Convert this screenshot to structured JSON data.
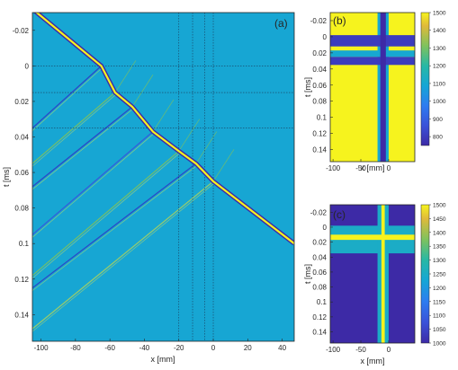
{
  "figure": {
    "panels": [
      {
        "id": "a",
        "label": "(a)",
        "xlabel": "x [mm]",
        "ylabel": "t [ms]",
        "xticks": [
          "-100",
          "-80",
          "-60",
          "-40",
          "-20",
          "0",
          "20",
          "40"
        ],
        "yticks": [
          "-0.02",
          "0",
          "0.02",
          "0.04",
          "0.06",
          "0.08",
          "0.1",
          "0.12",
          "0.14"
        ]
      },
      {
        "id": "b",
        "label": "(b)",
        "xlabel": "x [mm]",
        "ylabel": "t [ms]",
        "xticks": [
          "-100",
          "-50",
          "0"
        ],
        "yticks": [
          "-0.02",
          "0",
          "0.02",
          "0.04",
          "0.06",
          "0.08",
          "0.1",
          "0.12",
          "0.14"
        ],
        "colorbar_ticks": [
          "1500",
          "1400",
          "1300",
          "1200",
          "1100",
          "1000",
          "900",
          "800"
        ]
      },
      {
        "id": "c",
        "label": "(c)",
        "xlabel": "x [mm]",
        "ylabel": "t [ms]",
        "xticks": [
          "-100",
          "-50",
          "0"
        ],
        "yticks": [
          "-0.02",
          "0",
          "0.02",
          "0.04",
          "0.06",
          "0.08",
          "0.1",
          "0.12",
          "0.14"
        ],
        "colorbar_ticks": [
          "1500",
          "1450",
          "1400",
          "1350",
          "1300",
          "1250",
          "1200",
          "1150",
          "1100",
          "1050",
          "1000"
        ]
      }
    ]
  },
  "chart_data": [
    {
      "type": "heatmap",
      "panel": "(a)",
      "xlabel": "x [mm]",
      "ylabel": "t [ms]",
      "xlim": [
        -105,
        47
      ],
      "ylim": [
        -0.03,
        0.155
      ],
      "y_reversed": true,
      "background_color": "#17a6d3",
      "main_front_points": [
        [
          -105,
          -0.032
        ],
        [
          -65,
          0.0
        ],
        [
          -57,
          0.015
        ],
        [
          -47,
          0.023
        ],
        [
          -35,
          0.037
        ],
        [
          -20,
          0.048
        ],
        [
          -10,
          0.055
        ],
        [
          0,
          0.065
        ],
        [
          47,
          0.1
        ]
      ],
      "reflections": [
        {
          "from": [
            -65,
            0.0
          ],
          "to": [
            -105,
            0.035
          ]
        },
        {
          "from": [
            -57,
            0.015
          ],
          "to": [
            -105,
            0.055
          ]
        },
        {
          "from": [
            -47,
            0.023
          ],
          "to": [
            -105,
            0.068
          ]
        },
        {
          "from": [
            -35,
            0.037
          ],
          "to": [
            -105,
            0.095
          ]
        },
        {
          "from": [
            -20,
            0.048
          ],
          "to": [
            -105,
            0.118
          ]
        },
        {
          "from": [
            -10,
            0.055
          ],
          "to": [
            -105,
            0.125
          ]
        },
        {
          "from": [
            0,
            0.065
          ],
          "to": [
            -105,
            0.148
          ]
        }
      ],
      "guide_lines_x": [
        -20,
        -12,
        -5,
        0
      ],
      "guide_lines_y": [
        0.0,
        0.015,
        0.035
      ]
    },
    {
      "type": "heatmap",
      "panel": "(b)",
      "xlabel": "x [mm]",
      "ylabel": "t [ms]",
      "xlim": [
        -105,
        47
      ],
      "ylim": [
        -0.03,
        0.155
      ],
      "y_reversed": true,
      "colorbar": {
        "min": 750,
        "max": 1500,
        "ticks": [
          800,
          900,
          1000,
          1100,
          1200,
          1300,
          1400,
          1500
        ]
      },
      "background_value": 1500,
      "regions": [
        {
          "x": [
            -20,
            0
          ],
          "t": [
            -0.03,
            0.155
          ],
          "value": 1100
        },
        {
          "x": [
            -105,
            47
          ],
          "t": [
            -0.002,
            0.012
          ],
          "value": 800
        },
        {
          "x": [
            -105,
            47
          ],
          "t": [
            0.017,
            0.025
          ],
          "value": 1100
        },
        {
          "x": [
            -105,
            47
          ],
          "t": [
            0.025,
            0.035
          ],
          "value": 800
        },
        {
          "x": [
            -15,
            -5
          ],
          "t": [
            -0.03,
            0.155
          ],
          "value": 750
        }
      ]
    },
    {
      "type": "heatmap",
      "panel": "(c)",
      "xlabel": "x [mm]",
      "ylabel": "t [ms]",
      "xlim": [
        -105,
        47
      ],
      "ylim": [
        -0.03,
        0.155
      ],
      "y_reversed": true,
      "colorbar": {
        "min": 1000,
        "max": 1500,
        "ticks": [
          1000,
          1050,
          1100,
          1150,
          1200,
          1250,
          1300,
          1350,
          1400,
          1450,
          1500
        ]
      },
      "background_value": 1000,
      "regions": [
        {
          "x": [
            -105,
            47
          ],
          "t": [
            -0.002,
            0.035
          ],
          "value": 1250
        },
        {
          "x": [
            -20,
            0
          ],
          "t": [
            -0.03,
            0.155
          ],
          "value": 1250
        },
        {
          "x": [
            -105,
            47
          ],
          "t": [
            0.01,
            0.017
          ],
          "value": 1500
        },
        {
          "x": [
            -13,
            -7
          ],
          "t": [
            -0.03,
            0.155
          ],
          "value": 1500
        }
      ]
    }
  ]
}
